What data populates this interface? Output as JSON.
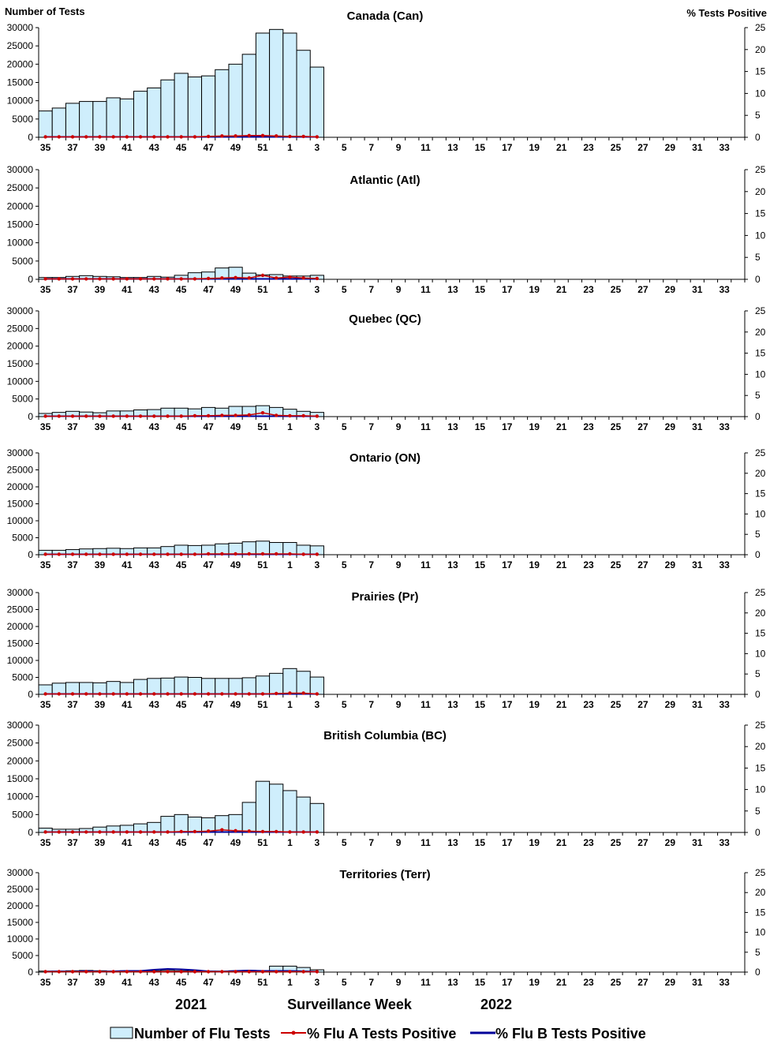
{
  "header": {
    "left_axis_title": "Number of Tests",
    "right_axis_title": "%  Tests Positive"
  },
  "footer": {
    "year_left": "2021",
    "xlabel": "Surveillance Week",
    "year_right": "2022"
  },
  "legend": {
    "tests_label": "Number of Flu Tests",
    "flu_a_label": "% Flu A Tests Positive",
    "flu_b_label": "% Flu B Tests Positive"
  },
  "colors": {
    "bar_fill": "#cfeefc",
    "bar_stroke": "#000000",
    "flu_a": "#cc0000",
    "flu_b": "#000099"
  },
  "chart_data": [
    {
      "type": "bar",
      "title": "Canada (Can)",
      "x_ticks": [
        "35",
        "37",
        "39",
        "41",
        "43",
        "45",
        "47",
        "49",
        "51",
        "1",
        "3",
        "5",
        "7",
        "9",
        "11",
        "13",
        "15",
        "17",
        "19",
        "21",
        "23",
        "25",
        "27",
        "29",
        "31",
        "33"
      ],
      "ylim": [
        0,
        30000
      ],
      "y2lim": [
        0,
        25
      ],
      "y_ticks": [
        "0",
        "5000",
        "10000",
        "15000",
        "20000",
        "25000",
        "30000"
      ],
      "y2_ticks": [
        "0",
        "5",
        "10",
        "15",
        "20",
        "25"
      ],
      "weeks": [
        "35",
        "36",
        "37",
        "38",
        "39",
        "40",
        "41",
        "42",
        "43",
        "44",
        "45",
        "46",
        "47",
        "48",
        "49",
        "50",
        "51",
        "52",
        "1",
        "2",
        "3"
      ],
      "series": [
        {
          "name": "Number of Flu Tests",
          "axis": "left",
          "values": [
            7200,
            8000,
            9300,
            9800,
            9800,
            10800,
            10500,
            12600,
            13500,
            15700,
            17500,
            16500,
            16800,
            18500,
            20000,
            22700,
            28500,
            29500,
            28500,
            23800,
            19200
          ]
        },
        {
          "name": "% Flu A Tests Positive",
          "axis": "right",
          "values": [
            0.1,
            0.1,
            0.1,
            0.1,
            0.1,
            0.1,
            0.1,
            0.1,
            0.1,
            0.1,
            0.1,
            0.1,
            0.2,
            0.3,
            0.3,
            0.4,
            0.4,
            0.3,
            0.2,
            0.2,
            0.1
          ]
        },
        {
          "name": "% Flu B Tests Positive",
          "axis": "right",
          "values": [
            0.1,
            0.1,
            0.1,
            0.1,
            0.1,
            0.1,
            0.1,
            0.1,
            0.1,
            0.1,
            0.1,
            0.1,
            0.1,
            0.1,
            0.1,
            0.1,
            0.1,
            0.1,
            0.1,
            0.1,
            0.1
          ]
        }
      ]
    },
    {
      "type": "bar",
      "title": "Atlantic (Atl)",
      "x_ticks": [
        "35",
        "37",
        "39",
        "41",
        "43",
        "45",
        "47",
        "49",
        "51",
        "1",
        "3",
        "5",
        "7",
        "9",
        "11",
        "13",
        "15",
        "17",
        "19",
        "21",
        "23",
        "25",
        "27",
        "29",
        "31",
        "33"
      ],
      "ylim": [
        0,
        30000
      ],
      "y2lim": [
        0,
        25
      ],
      "y_ticks": [
        "0",
        "5000",
        "10000",
        "15000",
        "20000",
        "25000",
        "30000"
      ],
      "y2_ticks": [
        "0",
        "5",
        "10",
        "15",
        "20",
        "25"
      ],
      "weeks": [
        "35",
        "36",
        "37",
        "38",
        "39",
        "40",
        "41",
        "42",
        "43",
        "44",
        "45",
        "46",
        "47",
        "48",
        "49",
        "50",
        "51",
        "52",
        "1",
        "2",
        "3"
      ],
      "series": [
        {
          "name": "Number of Flu Tests",
          "axis": "left",
          "values": [
            500,
            500,
            800,
            1000,
            800,
            700,
            500,
            500,
            800,
            600,
            1100,
            1800,
            2000,
            3100,
            3300,
            1700,
            1200,
            1300,
            900,
            900,
            1100
          ]
        },
        {
          "name": "% Flu A Tests Positive",
          "axis": "right",
          "values": [
            0.1,
            0.1,
            0.1,
            0.1,
            0.1,
            0.1,
            0.1,
            0.1,
            0.1,
            0.1,
            0.1,
            0.1,
            0.2,
            0.3,
            0.4,
            0.3,
            0.9,
            0.3,
            0.5,
            0.3,
            0.2
          ]
        },
        {
          "name": "% Flu B Tests Positive",
          "axis": "right",
          "values": [
            0.1,
            0.1,
            0.1,
            0.1,
            0.1,
            0.1,
            0.1,
            0.1,
            0.1,
            0.1,
            0.1,
            0.1,
            0.1,
            0.1,
            0.1,
            0.1,
            0.1,
            0.1,
            0.1,
            0.1,
            0.1
          ]
        }
      ]
    },
    {
      "type": "bar",
      "title": "Quebec (QC)",
      "x_ticks": [
        "35",
        "37",
        "39",
        "41",
        "43",
        "45",
        "47",
        "49",
        "51",
        "1",
        "3",
        "5",
        "7",
        "9",
        "11",
        "13",
        "15",
        "17",
        "19",
        "21",
        "23",
        "25",
        "27",
        "29",
        "31",
        "33"
      ],
      "ylim": [
        0,
        30000
      ],
      "y2lim": [
        0,
        25
      ],
      "y_ticks": [
        "0",
        "5000",
        "10000",
        "15000",
        "20000",
        "25000",
        "30000"
      ],
      "y2_ticks": [
        "0",
        "5",
        "10",
        "15",
        "20",
        "25"
      ],
      "weeks": [
        "35",
        "36",
        "37",
        "38",
        "39",
        "40",
        "41",
        "42",
        "43",
        "44",
        "45",
        "46",
        "47",
        "48",
        "49",
        "50",
        "51",
        "52",
        "1",
        "2",
        "3"
      ],
      "series": [
        {
          "name": "Number of Flu Tests",
          "axis": "left",
          "values": [
            900,
            1200,
            1500,
            1300,
            1100,
            1600,
            1600,
            1900,
            2000,
            2400,
            2400,
            2200,
            2600,
            2400,
            2900,
            2900,
            3100,
            2600,
            2100,
            1500,
            1200
          ]
        },
        {
          "name": "% Flu A Tests Positive",
          "axis": "right",
          "values": [
            0.1,
            0.1,
            0.1,
            0.1,
            0.1,
            0.1,
            0.1,
            0.1,
            0.1,
            0.1,
            0.1,
            0.2,
            0.2,
            0.3,
            0.3,
            0.4,
            0.9,
            0.3,
            0.2,
            0.2,
            0.1
          ]
        },
        {
          "name": "% Flu B Tests Positive",
          "axis": "right",
          "values": [
            0.1,
            0.1,
            0.1,
            0.1,
            0.1,
            0.1,
            0.1,
            0.1,
            0.1,
            0.1,
            0.1,
            0.1,
            0.1,
            0.1,
            0.1,
            0.1,
            0.1,
            0.1,
            0.1,
            0.1,
            0.1
          ]
        }
      ]
    },
    {
      "type": "bar",
      "title": "Ontario (ON)",
      "x_ticks": [
        "35",
        "37",
        "39",
        "41",
        "43",
        "45",
        "47",
        "49",
        "51",
        "1",
        "3",
        "5",
        "7",
        "9",
        "11",
        "13",
        "15",
        "17",
        "19",
        "21",
        "23",
        "25",
        "27",
        "29",
        "31",
        "33"
      ],
      "ylim": [
        0,
        30000
      ],
      "y2lim": [
        0,
        25
      ],
      "y_ticks": [
        "0",
        "5000",
        "10000",
        "15000",
        "20000",
        "25000",
        "30000"
      ],
      "y2_ticks": [
        "0",
        "5",
        "10",
        "15",
        "20",
        "25"
      ],
      "weeks": [
        "35",
        "36",
        "37",
        "38",
        "39",
        "40",
        "41",
        "42",
        "43",
        "44",
        "45",
        "46",
        "47",
        "48",
        "49",
        "50",
        "51",
        "52",
        "1",
        "2",
        "3"
      ],
      "series": [
        {
          "name": "Number of Flu Tests",
          "axis": "left",
          "values": [
            1300,
            1300,
            1500,
            1700,
            1800,
            1900,
            1800,
            2000,
            2000,
            2400,
            2800,
            2700,
            2800,
            3200,
            3400,
            3800,
            4000,
            3600,
            3600,
            2800,
            2600
          ]
        },
        {
          "name": "% Flu A Tests Positive",
          "axis": "right",
          "values": [
            0.1,
            0.1,
            0.1,
            0.1,
            0.1,
            0.1,
            0.1,
            0.1,
            0.1,
            0.1,
            0.1,
            0.1,
            0.2,
            0.2,
            0.2,
            0.2,
            0.2,
            0.2,
            0.2,
            0.1,
            0.1
          ]
        },
        {
          "name": "% Flu B Tests Positive",
          "axis": "right",
          "values": [
            0.1,
            0.1,
            0.1,
            0.1,
            0.1,
            0.1,
            0.1,
            0.1,
            0.1,
            0.1,
            0.1,
            0.1,
            0.1,
            0.1,
            0.1,
            0.1,
            0.1,
            0.1,
            0.1,
            0.1,
            0.1
          ]
        }
      ]
    },
    {
      "type": "bar",
      "title": "Prairies (Pr)",
      "x_ticks": [
        "35",
        "37",
        "39",
        "41",
        "43",
        "45",
        "47",
        "49",
        "51",
        "1",
        "3",
        "5",
        "7",
        "9",
        "11",
        "13",
        "15",
        "17",
        "19",
        "21",
        "23",
        "25",
        "27",
        "29",
        "31",
        "33"
      ],
      "ylim": [
        0,
        30000
      ],
      "y2lim": [
        0,
        25
      ],
      "y_ticks": [
        "0",
        "5000",
        "10000",
        "15000",
        "20000",
        "25000",
        "30000"
      ],
      "y2_ticks": [
        "0",
        "5",
        "10",
        "15",
        "20",
        "25"
      ],
      "weeks": [
        "35",
        "36",
        "37",
        "38",
        "39",
        "40",
        "41",
        "42",
        "43",
        "44",
        "45",
        "46",
        "47",
        "48",
        "49",
        "50",
        "51",
        "52",
        "1",
        "2",
        "3"
      ],
      "series": [
        {
          "name": "Number of Flu Tests",
          "axis": "left",
          "values": [
            2800,
            3300,
            3500,
            3500,
            3400,
            3800,
            3500,
            4400,
            4700,
            4800,
            5100,
            5000,
            4700,
            4700,
            4700,
            4900,
            5400,
            6200,
            7600,
            6800,
            5100
          ]
        },
        {
          "name": "% Flu A Tests Positive",
          "axis": "right",
          "values": [
            0.1,
            0.1,
            0.1,
            0.1,
            0.1,
            0.1,
            0.1,
            0.1,
            0.1,
            0.1,
            0.1,
            0.1,
            0.1,
            0.1,
            0.1,
            0.1,
            0.1,
            0.2,
            0.3,
            0.3,
            0.1
          ]
        },
        {
          "name": "% Flu B Tests Positive",
          "axis": "right",
          "values": [
            0.1,
            0.1,
            0.1,
            0.1,
            0.1,
            0.1,
            0.1,
            0.1,
            0.1,
            0.1,
            0.1,
            0.1,
            0.1,
            0.1,
            0.1,
            0.1,
            0.1,
            0.1,
            0.1,
            0.1,
            0.1
          ]
        }
      ]
    },
    {
      "type": "bar",
      "title": "British Columbia (BC)",
      "x_ticks": [
        "35",
        "37",
        "39",
        "41",
        "43",
        "45",
        "47",
        "49",
        "51",
        "1",
        "3",
        "5",
        "7",
        "9",
        "11",
        "13",
        "15",
        "17",
        "19",
        "21",
        "23",
        "25",
        "27",
        "29",
        "31",
        "33"
      ],
      "ylim": [
        0,
        30000
      ],
      "y2lim": [
        0,
        25
      ],
      "y_ticks": [
        "0",
        "5000",
        "10000",
        "15000",
        "20000",
        "25000",
        "30000"
      ],
      "y2_ticks": [
        "0",
        "5",
        "10",
        "15",
        "20",
        "25"
      ],
      "weeks": [
        "35",
        "36",
        "37",
        "38",
        "39",
        "40",
        "41",
        "42",
        "43",
        "44",
        "45",
        "46",
        "47",
        "48",
        "49",
        "50",
        "51",
        "52",
        "1",
        "2",
        "3"
      ],
      "series": [
        {
          "name": "Number of Flu Tests",
          "axis": "left",
          "values": [
            1200,
            900,
            900,
            1100,
            1500,
            1800,
            2000,
            2400,
            2800,
            4500,
            5000,
            4300,
            4100,
            4700,
            5000,
            8400,
            14300,
            13500,
            11700,
            9900,
            8100
          ]
        },
        {
          "name": "% Flu A Tests Positive",
          "axis": "right",
          "values": [
            0.1,
            0.1,
            0.1,
            0.1,
            0.1,
            0.1,
            0.1,
            0.1,
            0.1,
            0.1,
            0.2,
            0.2,
            0.3,
            0.6,
            0.4,
            0.3,
            0.2,
            0.2,
            0.1,
            0.1,
            0.1
          ]
        },
        {
          "name": "% Flu B Tests Positive",
          "axis": "right",
          "values": [
            0.1,
            0.1,
            0.1,
            0.1,
            0.1,
            0.1,
            0.1,
            0.1,
            0.1,
            0.1,
            0.1,
            0.1,
            0.1,
            0.1,
            0.1,
            0.1,
            0.1,
            0.1,
            0.1,
            0.1,
            0.1
          ]
        }
      ]
    },
    {
      "type": "bar",
      "title": "Territories (Terr)",
      "x_ticks": [
        "35",
        "37",
        "39",
        "41",
        "43",
        "45",
        "47",
        "49",
        "51",
        "1",
        "3",
        "5",
        "7",
        "9",
        "11",
        "13",
        "15",
        "17",
        "19",
        "21",
        "23",
        "25",
        "27",
        "29",
        "31",
        "33"
      ],
      "ylim": [
        0,
        30000
      ],
      "y2lim": [
        0,
        25
      ],
      "y_ticks": [
        "0",
        "5000",
        "10000",
        "15000",
        "20000",
        "25000",
        "30000"
      ],
      "y2_ticks": [
        "0",
        "5",
        "10",
        "15",
        "20",
        "25"
      ],
      "weeks": [
        "35",
        "36",
        "37",
        "38",
        "39",
        "40",
        "41",
        "42",
        "43",
        "44",
        "45",
        "46",
        "47",
        "48",
        "49",
        "50",
        "51",
        "52",
        "1",
        "2",
        "3"
      ],
      "series": [
        {
          "name": "Number of Flu Tests",
          "axis": "left",
          "values": [
            300,
            300,
            400,
            500,
            400,
            300,
            400,
            400,
            400,
            500,
            400,
            300,
            300,
            300,
            400,
            500,
            400,
            1800,
            1800,
            1400,
            700
          ]
        },
        {
          "name": "% Flu A Tests Positive",
          "axis": "right",
          "values": [
            0.1,
            0.1,
            0.1,
            0.1,
            0.1,
            0.1,
            0.1,
            0.1,
            0.1,
            0.1,
            0.1,
            0.1,
            0.1,
            0.1,
            0.1,
            0.1,
            0.1,
            0.1,
            0.1,
            0.1,
            0.1
          ]
        },
        {
          "name": "% Flu B Tests Positive",
          "axis": "right",
          "values": [
            0.1,
            0.2,
            0.1,
            0.3,
            0.1,
            0.2,
            0.3,
            0.3,
            0.6,
            0.8,
            0.7,
            0.5,
            0.2,
            0.1,
            0.3,
            0.4,
            0.3,
            0.3,
            0.3,
            0.2,
            0.1
          ]
        }
      ]
    }
  ]
}
